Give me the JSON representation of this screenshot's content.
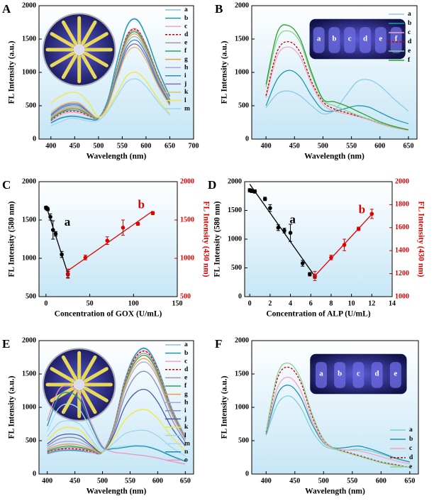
{
  "chart_data": [
    {
      "type": "line",
      "panel_label": "A",
      "xlabel": "Wavelength (nm)",
      "ylabel": "FL Intensity (a.u.)",
      "xlim": [
        375,
        700
      ],
      "xticks": [
        400,
        450,
        500,
        550,
        600,
        650,
        700
      ],
      "ylim": [
        0,
        2000
      ],
      "yticks": [
        0,
        500,
        1000,
        1500,
        2000
      ],
      "legend": "upper right",
      "inset": "wheel",
      "x": [
        400,
        420,
        440,
        460,
        480,
        500,
        520,
        540,
        560,
        580,
        600,
        625,
        650
      ],
      "series": [
        {
          "name": "a",
          "color": "#86c0ec",
          "values": [
            250,
            320,
            350,
            340,
            310,
            320,
            600,
            1200,
            1700,
            1800,
            1550,
            1050,
            650
          ]
        },
        {
          "name": "b",
          "color": "#1c96a8",
          "values": [
            240,
            310,
            340,
            330,
            300,
            310,
            590,
            1190,
            1690,
            1790,
            1540,
            1040,
            640
          ]
        },
        {
          "name": "c",
          "color": "#f2a2c2",
          "values": [
            270,
            360,
            400,
            390,
            340,
            320,
            560,
            1100,
            1560,
            1650,
            1420,
            960,
            600
          ]
        },
        {
          "name": "d",
          "color": "#c00000",
          "style": "dashed",
          "values": [
            280,
            380,
            420,
            410,
            350,
            320,
            560,
            1090,
            1550,
            1640,
            1410,
            950,
            590
          ]
        },
        {
          "name": "e",
          "color": "#9a9a9a",
          "values": [
            290,
            390,
            430,
            420,
            360,
            320,
            550,
            1080,
            1530,
            1620,
            1400,
            940,
            590
          ]
        },
        {
          "name": "f",
          "color": "#2ca05a",
          "values": [
            300,
            400,
            450,
            440,
            370,
            320,
            550,
            1070,
            1510,
            1600,
            1380,
            930,
            580
          ]
        },
        {
          "name": "g",
          "color": "#e8a040",
          "values": [
            320,
            420,
            470,
            460,
            380,
            320,
            540,
            1050,
            1480,
            1570,
            1350,
            910,
            570
          ]
        },
        {
          "name": "h",
          "color": "#b4a4dc",
          "values": [
            330,
            440,
            490,
            480,
            390,
            320,
            530,
            1020,
            1440,
            1530,
            1320,
            890,
            560
          ]
        },
        {
          "name": "i",
          "color": "#2f8fb4",
          "values": [
            350,
            460,
            510,
            500,
            400,
            320,
            520,
            990,
            1390,
            1480,
            1280,
            860,
            540
          ]
        },
        {
          "name": "j",
          "color": "#8c6bb1",
          "values": [
            370,
            480,
            530,
            520,
            410,
            320,
            510,
            950,
            1340,
            1420,
            1230,
            830,
            520
          ]
        },
        {
          "name": "k",
          "color": "#e0c070",
          "values": [
            400,
            500,
            550,
            540,
            420,
            320,
            500,
            920,
            1290,
            1370,
            1180,
            800,
            500
          ]
        },
        {
          "name": "l",
          "color": "#f2e640",
          "values": [
            540,
            640,
            700,
            680,
            540,
            330,
            450,
            700,
            950,
            1000,
            870,
            600,
            380
          ]
        },
        {
          "name": "m",
          "color": "#9fd4f0",
          "values": [
            200,
            260,
            310,
            300,
            270,
            280,
            420,
            650,
            860,
            900,
            790,
            560,
            360
          ]
        }
      ]
    },
    {
      "type": "line",
      "panel_label": "B",
      "xlabel": "Wavelength (nm)",
      "ylabel": "FL Intensity (a.u.)",
      "xlim": [
        375,
        665
      ],
      "xticks": [
        400,
        450,
        500,
        550,
        600,
        650
      ],
      "ylim": [
        0,
        2000
      ],
      "yticks": [
        0,
        500,
        1000,
        1500,
        2000
      ],
      "legend": "upper right",
      "inset": "tubes",
      "inset_labels": [
        "a",
        "b",
        "c",
        "d",
        "e",
        "f"
      ],
      "x": [
        400,
        420,
        440,
        460,
        480,
        500,
        520,
        540,
        560,
        580,
        600,
        625,
        650
      ],
      "series": [
        {
          "name": "a",
          "color": "#8ecae6",
          "values": [
            470,
            680,
            720,
            650,
            500,
            380,
            430,
            650,
            860,
            890,
            800,
            600,
            420
          ]
        },
        {
          "name": "b",
          "color": "#1f9aa8",
          "values": [
            500,
            900,
            1030,
            930,
            650,
            440,
            420,
            460,
            500,
            480,
            400,
            300,
            230
          ]
        },
        {
          "name": "c",
          "color": "#f4a6c0",
          "values": [
            620,
            1250,
            1380,
            1230,
            820,
            520,
            420,
            380,
            340,
            290,
            230,
            170,
            130
          ]
        },
        {
          "name": "d",
          "color": "#c00000",
          "style": "dashed",
          "values": [
            650,
            1320,
            1460,
            1300,
            860,
            560,
            450,
            400,
            350,
            300,
            240,
            180,
            140
          ]
        },
        {
          "name": "e",
          "color": "#8fd08f",
          "values": [
            780,
            1500,
            1620,
            1450,
            960,
            590,
            500,
            430,
            360,
            300,
            240,
            180,
            140
          ]
        },
        {
          "name": "f",
          "color": "#2ca02c",
          "values": [
            820,
            1600,
            1700,
            1500,
            1000,
            600,
            560,
            500,
            420,
            340,
            260,
            190,
            140
          ]
        }
      ]
    },
    {
      "type": "scatter",
      "panel_label": "C",
      "xlabel": "Concentration of GOX (U/mL)",
      "ylabel": "FL Intensity (580 nm)",
      "y2label": "FL Intensity (430 nm)",
      "xlim": [
        -8,
        150
      ],
      "xticks": [
        0,
        50,
        100,
        150
      ],
      "ylim": [
        500,
        2000
      ],
      "yticks": [
        500,
        1000,
        1500,
        2000
      ],
      "y2lim": [
        500,
        2000
      ],
      "y2ticks": [
        500,
        1000,
        1500,
        2000
      ],
      "y2color": "#e00000",
      "series": [
        {
          "name": "a",
          "color": "#000000",
          "x": [
            0,
            1,
            2,
            5,
            8,
            11,
            18,
            25
          ],
          "values": [
            1660,
            1650,
            1640,
            1540,
            1370,
            1320,
            1050,
            790
          ],
          "errors": [
            20,
            20,
            20,
            40,
            120,
            30,
            40,
            40
          ]
        },
        {
          "name": "b",
          "color": "#e00000",
          "axis": "y2",
          "x": [
            25,
            45,
            70,
            88,
            105,
            122
          ],
          "values": [
            800,
            1010,
            1230,
            1400,
            1450,
            1590
          ],
          "errors": [
            60,
            30,
            50,
            100,
            20,
            20
          ]
        }
      ]
    },
    {
      "type": "scatter",
      "panel_label": "D",
      "xlabel": "Concentration of ALP (U/mL)",
      "ylabel": "FL Intensity (580 nm)",
      "y2label": "FL Intensity (430 nm)",
      "xlim": [
        -0.5,
        14
      ],
      "xticks": [
        0,
        2,
        4,
        6,
        8,
        10,
        12,
        14
      ],
      "ylim": [
        0,
        2000
      ],
      "yticks": [
        0,
        500,
        1000,
        1500,
        2000
      ],
      "y2lim": [
        1000,
        2000
      ],
      "y2ticks": [
        1000,
        1200,
        1400,
        1600,
        1800,
        2000
      ],
      "y2color": "#e00000",
      "series": [
        {
          "name": "a",
          "color": "#000000",
          "x": [
            0,
            0.2,
            0.5,
            1.5,
            2,
            2.8,
            3.4,
            4,
            5.2,
            5.9,
            6.4
          ],
          "values": [
            1850,
            1840,
            1830,
            1700,
            1540,
            1200,
            1150,
            1110,
            580,
            390,
            350
          ],
          "errors": [
            30,
            30,
            30,
            30,
            60,
            50,
            40,
            150,
            50,
            30,
            30
          ]
        },
        {
          "name": "b",
          "color": "#e00000",
          "axis": "y2",
          "x": [
            6.4,
            8,
            9.3,
            10.7,
            12
          ],
          "values": [
            1180,
            1340,
            1450,
            1590,
            1720
          ],
          "errors": [
            40,
            20,
            50,
            15,
            40
          ]
        }
      ]
    },
    {
      "type": "line",
      "panel_label": "E",
      "xlabel": "Wavelength (nm)",
      "ylabel": "FL Intensity (a.u.)",
      "xlim": [
        385,
        665
      ],
      "xticks": [
        400,
        450,
        500,
        550,
        600,
        650
      ],
      "ylim": [
        0,
        2000
      ],
      "yticks": [
        0,
        500,
        1000,
        1500,
        2000
      ],
      "legend": "upper right",
      "inset": "wheel",
      "x": [
        400,
        420,
        440,
        460,
        480,
        500,
        520,
        540,
        560,
        580,
        600,
        625,
        650
      ],
      "series": [
        {
          "name": "a",
          "color": "#86c0ec",
          "values": [
            300,
            340,
            350,
            340,
            320,
            330,
            700,
            1400,
            1800,
            1880,
            1600,
            1000,
            560
          ]
        },
        {
          "name": "b",
          "color": "#1c96a8",
          "values": [
            310,
            350,
            360,
            350,
            330,
            330,
            700,
            1390,
            1790,
            1870,
            1590,
            990,
            550
          ]
        },
        {
          "name": "c",
          "color": "#f2a2c2",
          "values": [
            320,
            360,
            370,
            360,
            330,
            330,
            690,
            1370,
            1760,
            1840,
            1570,
            980,
            550
          ]
        },
        {
          "name": "d",
          "color": "#c00000",
          "style": "dashed",
          "values": [
            330,
            370,
            380,
            370,
            340,
            330,
            690,
            1360,
            1750,
            1830,
            1560,
            970,
            540
          ]
        },
        {
          "name": "e",
          "color": "#9a9a9a",
          "values": [
            340,
            380,
            400,
            390,
            350,
            330,
            680,
            1340,
            1720,
            1800,
            1540,
            960,
            540
          ]
        },
        {
          "name": "f",
          "color": "#2ca05a",
          "values": [
            350,
            400,
            420,
            400,
            360,
            330,
            670,
            1320,
            1690,
            1770,
            1510,
            940,
            530
          ]
        },
        {
          "name": "g",
          "color": "#e8a040",
          "values": [
            370,
            430,
            450,
            430,
            370,
            330,
            660,
            1290,
            1650,
            1720,
            1470,
            920,
            520
          ]
        },
        {
          "name": "h",
          "color": "#b4a4dc",
          "values": [
            390,
            470,
            490,
            470,
            390,
            330,
            640,
            1250,
            1600,
            1670,
            1430,
            900,
            510
          ]
        },
        {
          "name": "i",
          "color": "#8c8cb0",
          "values": [
            420,
            520,
            550,
            520,
            410,
            330,
            620,
            1160,
            1470,
            1530,
            1310,
            830,
            480
          ]
        },
        {
          "name": "j",
          "color": "#4a5aa8",
          "values": [
            450,
            570,
            600,
            570,
            430,
            330,
            580,
            1000,
            1220,
            1260,
            1080,
            700,
            420
          ]
        },
        {
          "name": "k",
          "color": "#f2e640",
          "values": [
            500,
            660,
            700,
            650,
            470,
            330,
            530,
            800,
            940,
            960,
            830,
            560,
            350
          ]
        },
        {
          "name": "l",
          "color": "#9fd4f0",
          "values": [
            560,
            760,
            800,
            740,
            520,
            340,
            460,
            600,
            650,
            650,
            570,
            400,
            270
          ]
        },
        {
          "name": "m",
          "color": "#a8dcf4",
          "values": [
            640,
            980,
            1050,
            950,
            640,
            370,
            400,
            420,
            430,
            420,
            370,
            280,
            200
          ]
        },
        {
          "name": "n",
          "color": "#1890a8",
          "values": [
            720,
            1150,
            1220,
            1100,
            720,
            400,
            380,
            400,
            420,
            410,
            360,
            270,
            190
          ]
        },
        {
          "name": "o",
          "color": "#e898c0",
          "values": [
            800,
            1250,
            1320,
            1180,
            760,
            420,
            330,
            310,
            290,
            270,
            240,
            190,
            150
          ]
        }
      ]
    },
    {
      "type": "line",
      "panel_label": "F",
      "xlabel": "Wavelength (nm)",
      "ylabel": "FL Intensity (a.u.)",
      "xlim": [
        375,
        665
      ],
      "xticks": [
        400,
        450,
        500,
        550,
        600,
        650
      ],
      "ylim": [
        0,
        2000
      ],
      "yticks": [
        0,
        500,
        1000,
        1500,
        2000
      ],
      "legend": "lower right",
      "inset": "tubes",
      "inset_labels": [
        "a",
        "b",
        "c",
        "d",
        "e"
      ],
      "x": [
        400,
        420,
        440,
        460,
        480,
        500,
        520,
        540,
        560,
        580,
        600,
        625,
        650
      ],
      "series": [
        {
          "name": "a",
          "color": "#7fd0d0",
          "values": [
            580,
            1050,
            1170,
            1000,
            650,
            430,
            370,
            360,
            370,
            350,
            300,
            230,
            180
          ]
        },
        {
          "name": "b",
          "color": "#1f8fb0",
          "values": [
            600,
            1200,
            1330,
            1150,
            750,
            470,
            390,
            400,
            420,
            380,
            320,
            240,
            180
          ]
        },
        {
          "name": "c",
          "color": "#f4a6c0",
          "values": [
            620,
            1300,
            1450,
            1250,
            800,
            480,
            380,
            360,
            350,
            310,
            260,
            200,
            150
          ]
        },
        {
          "name": "d",
          "color": "#c00000",
          "style": "dashed",
          "values": [
            630,
            1440,
            1600,
            1380,
            870,
            510,
            380,
            330,
            280,
            230,
            180,
            140,
            100
          ]
        },
        {
          "name": "e",
          "color": "#8fd08f",
          "values": [
            640,
            1500,
            1660,
            1430,
            900,
            520,
            380,
            320,
            270,
            220,
            170,
            130,
            100
          ]
        }
      ]
    }
  ]
}
